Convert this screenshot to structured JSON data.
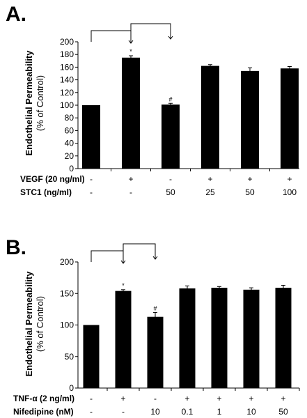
{
  "chart_data": [
    {
      "type": "bar",
      "panel_label": "A.",
      "ylabel": "Endothelial Permeability",
      "ylabel_sub": "(% of Control)",
      "ylim": [
        0,
        200
      ],
      "yticks": [
        0,
        20,
        40,
        60,
        80,
        100,
        120,
        140,
        160,
        180,
        200
      ],
      "values": [
        100,
        175,
        101,
        162,
        154,
        158
      ],
      "errors": [
        0,
        3,
        2,
        2,
        5,
        3
      ],
      "markers": [
        "",
        "*",
        "#",
        "",
        "",
        ""
      ],
      "treatments": [
        {
          "label": "VEGF (20 ng/ml)",
          "values": [
            "-",
            "+",
            "-",
            "+",
            "+",
            "+"
          ]
        },
        {
          "label": "STC1 (ng/ml)",
          "values": [
            "-",
            "-",
            "50",
            "25",
            "50",
            "100"
          ]
        }
      ]
    },
    {
      "type": "bar",
      "panel_label": "B.",
      "ylabel": "Endothelial Permeability",
      "ylabel_sub": "(% of Control)",
      "ylim": [
        0,
        200
      ],
      "yticks": [
        0,
        50,
        100,
        150,
        200
      ],
      "values": [
        100,
        154,
        113,
        158,
        159,
        156,
        159
      ],
      "errors": [
        0,
        2,
        7,
        4,
        2,
        3,
        4
      ],
      "markers": [
        "",
        "*",
        "#",
        "",
        "",
        "",
        ""
      ],
      "treatments": [
        {
          "label": "TNF-α (2 ng/ml)",
          "values": [
            "-",
            "+",
            "-",
            "+",
            "+",
            "+",
            "+"
          ]
        },
        {
          "label": "Nifedipine (nM)",
          "values": [
            "-",
            "-",
            "10",
            "0.1",
            "1",
            "10",
            "50"
          ]
        }
      ]
    }
  ]
}
